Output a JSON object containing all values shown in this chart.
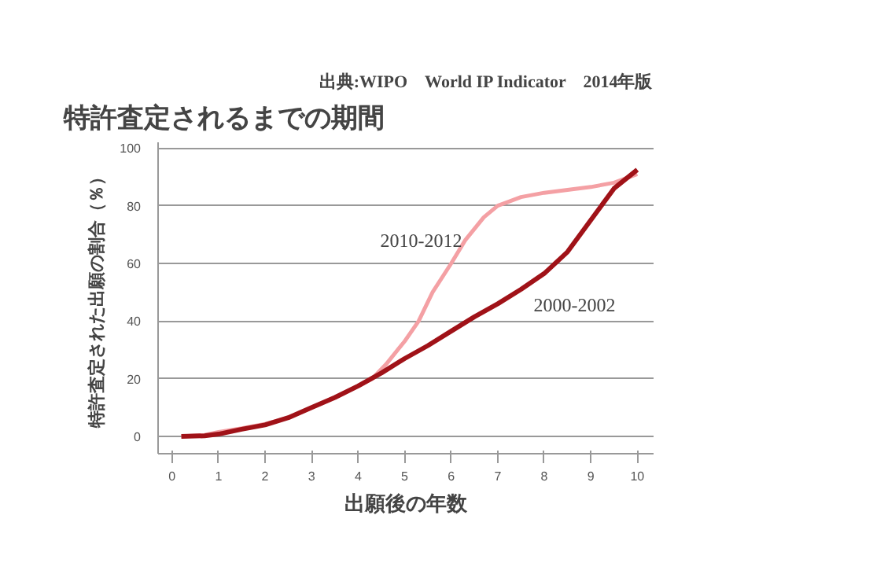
{
  "chart_data": {
    "type": "line",
    "title": "特許査定されるまでの期間",
    "xlabel": "出願後の年数",
    "ylabel": "特許査定された出願の割合（％）",
    "annotations": [
      "出典:WIPO　World IP Indicator　2014年版"
    ],
    "series": [
      {
        "name": "2010-2012",
        "color": "#f4a0a4",
        "x": [
          0.2,
          0.7,
          1,
          1.5,
          2,
          2.5,
          3,
          3.5,
          4,
          4.3,
          4.6,
          5,
          5.3,
          5.6,
          6,
          6.3,
          6.7,
          7,
          7.5,
          8,
          8.5,
          9,
          9.5,
          10
        ],
        "values": [
          0,
          0.5,
          1.5,
          2.8,
          4.3,
          6.5,
          10,
          13.5,
          17.5,
          20,
          25,
          33,
          40,
          50,
          60,
          68,
          76,
          80,
          83,
          84.5,
          85.5,
          86.5,
          88,
          91
        ]
      },
      {
        "name": "2000-2002",
        "color": "#a01218",
        "x": [
          0.2,
          0.7,
          1,
          1.5,
          2,
          2.5,
          3,
          3.5,
          4,
          4.5,
          5,
          5.5,
          6,
          6.5,
          7,
          7.5,
          8,
          8.5,
          9,
          9.5,
          10
        ],
        "values": [
          0,
          0.2,
          0.8,
          2.5,
          4,
          6.5,
          10,
          13.5,
          17.5,
          22,
          27,
          31.5,
          36.5,
          41.5,
          46,
          51,
          56.5,
          64,
          75,
          86,
          92.5
        ]
      }
    ],
    "xlim": [
      -0.3,
      10.35
    ],
    "ylim": [
      -6,
      102
    ],
    "xticks": [
      0,
      1,
      2,
      3,
      4,
      5,
      6,
      7,
      8,
      9,
      10
    ],
    "yticks": [
      0,
      20,
      40,
      60,
      80,
      100
    ],
    "grid": "y",
    "line_style": "solid"
  }
}
